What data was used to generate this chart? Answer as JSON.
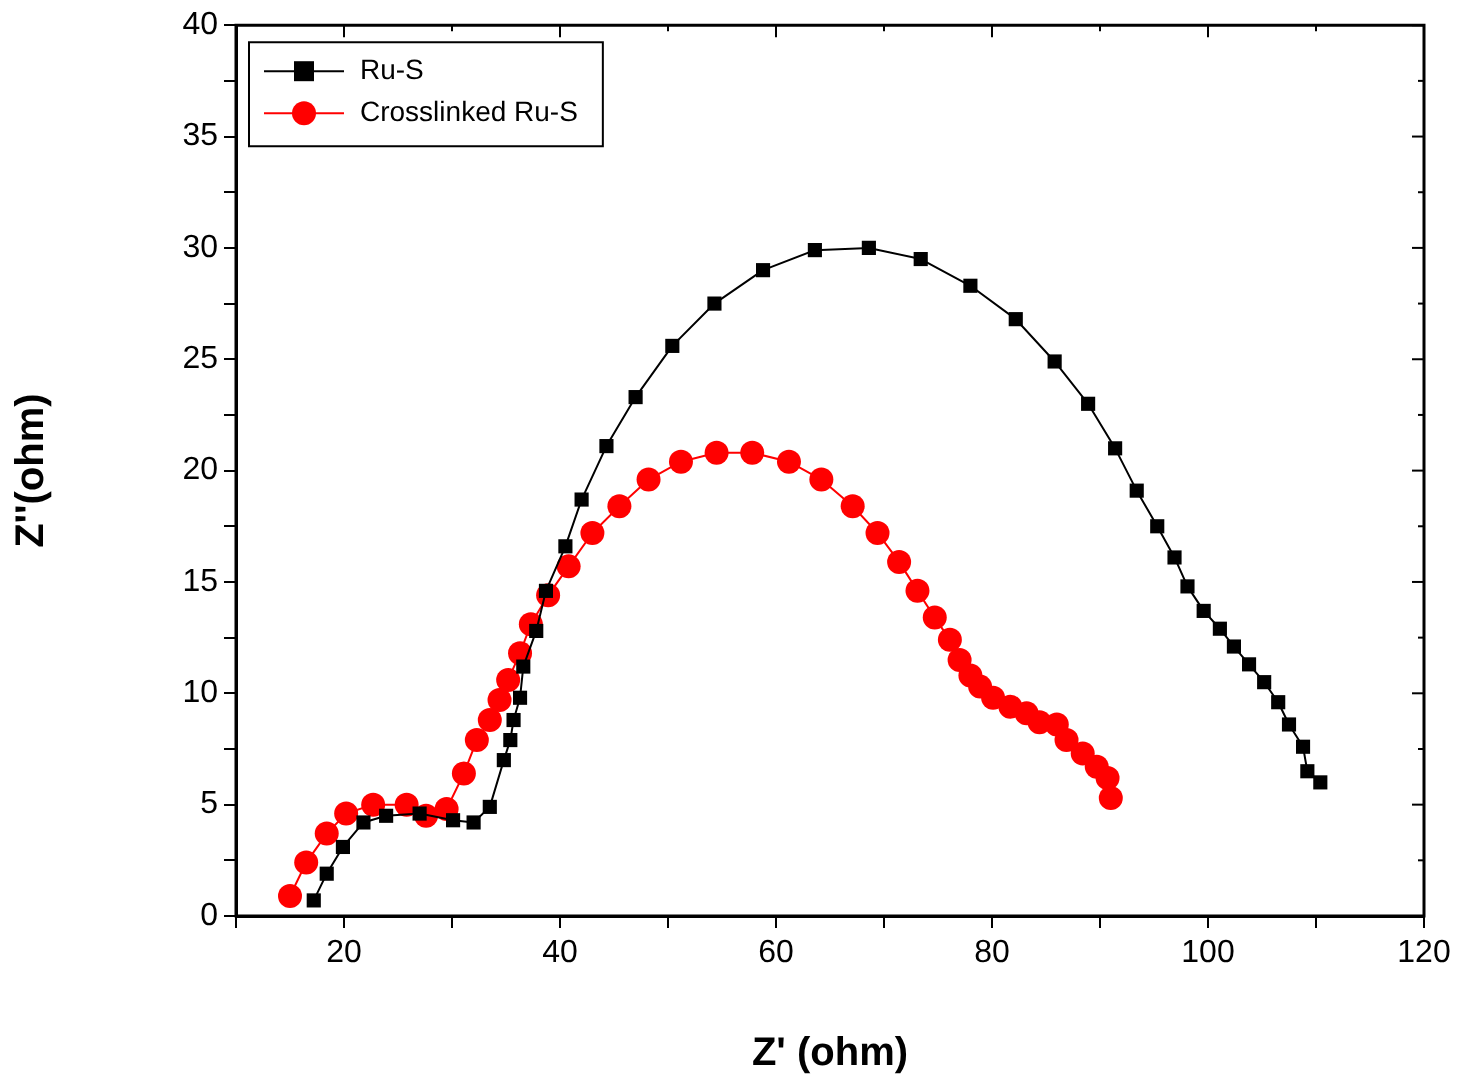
{
  "chart_data": {
    "type": "line",
    "xlabel": "Z' (ohm)",
    "ylabel": "Z''(ohm)",
    "xlim": [
      10,
      120
    ],
    "ylim": [
      0,
      40
    ],
    "xticks": [
      {
        "value": 10,
        "label": null
      },
      20,
      {
        "value": 30,
        "label": null
      },
      40,
      {
        "value": 50,
        "label": null
      },
      60,
      {
        "value": 70,
        "label": null
      },
      80,
      {
        "value": 90,
        "label": null
      },
      100,
      {
        "value": 110,
        "label": null
      },
      120
    ],
    "yticks": [
      0,
      {
        "value": 2.5,
        "label": null
      },
      5,
      {
        "value": 7.5,
        "label": null
      },
      10,
      {
        "value": 12.5,
        "label": null
      },
      15,
      {
        "value": 17.5,
        "label": null
      },
      20,
      {
        "value": 22.5,
        "label": null
      },
      25,
      {
        "value": 27.5,
        "label": null
      },
      30,
      {
        "value": 32.5,
        "label": null
      },
      35,
      {
        "value": 37.5,
        "label": null
      },
      40
    ],
    "grid": false,
    "legend": "top left",
    "line_style": "solid",
    "series": [
      {
        "name": "Ru-S",
        "color": "#000000",
        "marker": "square",
        "x": [
          17.2,
          18.4,
          19.9,
          21.8,
          23.9,
          27.0,
          30.1,
          32.0,
          33.5,
          34.8,
          35.4,
          35.7,
          36.3,
          36.6,
          37.8,
          38.7,
          40.5,
          42.0,
          44.3,
          47.0,
          50.4,
          54.3,
          58.8,
          63.6,
          68.6,
          73.4,
          78.0,
          82.2,
          85.8,
          88.9,
          91.4,
          93.4,
          95.3,
          96.9,
          98.1,
          99.6,
          101.1,
          102.4,
          103.8,
          105.2,
          106.5,
          107.5,
          108.8,
          109.2,
          110.4
        ],
        "values": [
          0.7,
          1.9,
          3.1,
          4.2,
          4.5,
          4.6,
          4.3,
          4.2,
          4.9,
          7.0,
          7.9,
          8.8,
          9.8,
          11.2,
          12.8,
          14.6,
          16.6,
          18.7,
          21.1,
          23.3,
          25.6,
          27.5,
          29.0,
          29.9,
          30.0,
          29.5,
          28.3,
          26.8,
          24.9,
          23.0,
          21.0,
          19.1,
          17.5,
          16.1,
          14.8,
          13.7,
          12.9,
          12.1,
          11.3,
          10.5,
          9.6,
          8.6,
          7.6,
          6.5,
          6.0
        ]
      },
      {
        "name": "Crosslinked Ru-S",
        "color": "#ff0000",
        "marker": "circle",
        "x": [
          15.0,
          16.5,
          18.4,
          20.2,
          22.7,
          25.8,
          27.6,
          29.5,
          31.1,
          32.3,
          33.5,
          34.4,
          35.2,
          36.3,
          37.3,
          38.9,
          40.8,
          43.0,
          45.5,
          48.2,
          51.2,
          54.5,
          57.8,
          61.2,
          64.2,
          67.1,
          69.4,
          71.4,
          73.1,
          74.7,
          76.1,
          77.0,
          78.0,
          78.9,
          80.1,
          81.7,
          83.2,
          84.4,
          86.0,
          86.9,
          88.4,
          89.7,
          90.7,
          91.0
        ],
        "values": [
          0.9,
          2.4,
          3.7,
          4.6,
          5.0,
          5.0,
          4.5,
          4.8,
          6.4,
          7.9,
          8.8,
          9.7,
          10.6,
          11.8,
          13.1,
          14.4,
          15.7,
          17.2,
          18.4,
          19.6,
          20.4,
          20.8,
          20.8,
          20.4,
          19.6,
          18.4,
          17.2,
          15.9,
          14.6,
          13.4,
          12.4,
          11.5,
          10.8,
          10.3,
          9.8,
          9.4,
          9.1,
          8.7,
          8.6,
          7.9,
          7.3,
          6.7,
          6.2,
          5.3
        ]
      }
    ]
  }
}
